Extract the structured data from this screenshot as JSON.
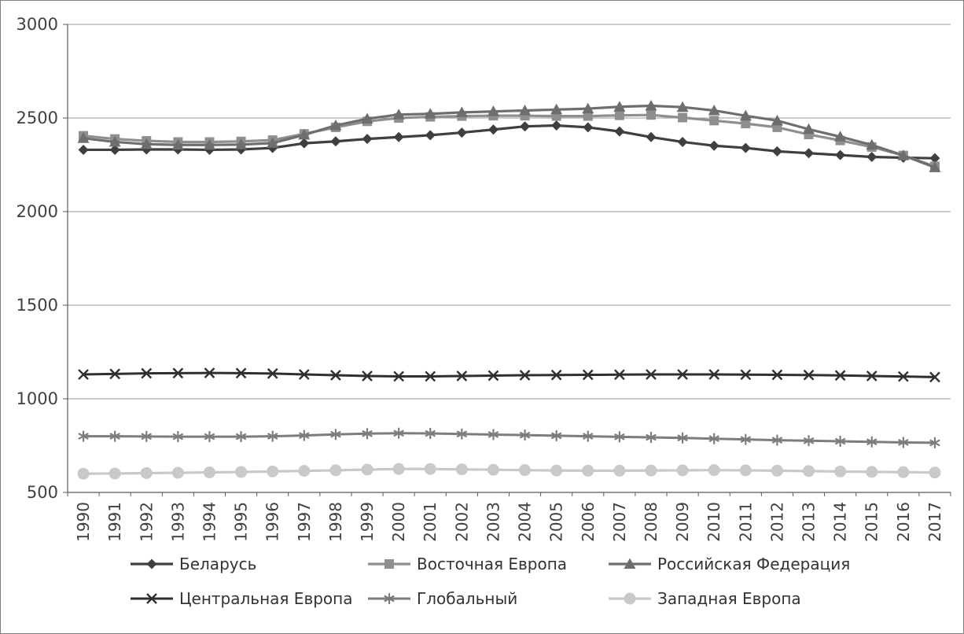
{
  "chart_data": {
    "type": "line",
    "title": "",
    "xlabel": "",
    "ylabel": "",
    "x": [
      1990,
      1991,
      1992,
      1993,
      1994,
      1995,
      1996,
      1997,
      1998,
      1999,
      2000,
      2001,
      2002,
      2003,
      2004,
      2005,
      2006,
      2007,
      2008,
      2009,
      2010,
      2011,
      2012,
      2013,
      2014,
      2015,
      2016,
      2017
    ],
    "ylim": [
      500,
      3000
    ],
    "yticks": [
      500,
      1000,
      1500,
      2000,
      2500,
      3000
    ],
    "grid": true,
    "legend_position": "bottom",
    "series": [
      {
        "name": "Беларусь",
        "marker": "diamond",
        "color": "#3f3f3f",
        "line_width": 3.2,
        "values": [
          2330,
          2330,
          2332,
          2332,
          2330,
          2332,
          2340,
          2365,
          2375,
          2388,
          2398,
          2408,
          2422,
          2438,
          2455,
          2460,
          2450,
          2428,
          2398,
          2372,
          2352,
          2340,
          2322,
          2312,
          2302,
          2292,
          2288,
          2285
        ]
      },
      {
        "name": "Восточная Европа",
        "marker": "square",
        "color": "#8f8f8f",
        "line_width": 3.2,
        "values": [
          2405,
          2388,
          2378,
          2372,
          2372,
          2375,
          2382,
          2415,
          2450,
          2482,
          2500,
          2506,
          2510,
          2512,
          2512,
          2510,
          2510,
          2514,
          2516,
          2502,
          2486,
          2470,
          2450,
          2412,
          2380,
          2345,
          2300,
          2242
        ]
      },
      {
        "name": "Российская Федерация",
        "marker": "triangle",
        "color": "#6e6e6e",
        "line_width": 3.2,
        "values": [
          2392,
          2372,
          2360,
          2356,
          2356,
          2358,
          2366,
          2410,
          2460,
          2496,
          2518,
          2522,
          2530,
          2535,
          2540,
          2545,
          2550,
          2560,
          2565,
          2558,
          2540,
          2512,
          2486,
          2440,
          2400,
          2356,
          2300,
          2236
        ]
      },
      {
        "name": "Центральная Европа",
        "marker": "x",
        "color": "#2f2f2f",
        "line_width": 3,
        "values": [
          1130,
          1133,
          1136,
          1137,
          1138,
          1137,
          1135,
          1130,
          1126,
          1122,
          1120,
          1120,
          1122,
          1124,
          1126,
          1127,
          1128,
          1129,
          1130,
          1130,
          1130,
          1129,
          1128,
          1127,
          1125,
          1122,
          1119,
          1116
        ]
      },
      {
        "name": "Глобальный",
        "marker": "star",
        "color": "#7d7d7d",
        "line_width": 3,
        "values": [
          800,
          800,
          799,
          798,
          798,
          798,
          800,
          804,
          810,
          814,
          816,
          815,
          812,
          809,
          806,
          803,
          800,
          797,
          794,
          791,
          787,
          783,
          779,
          776,
          773,
          770,
          767,
          765
        ]
      },
      {
        "name": "Западная Европа",
        "marker": "circle",
        "color": "#c9c9c9",
        "line_width": 3.2,
        "values": [
          600,
          601,
          603,
          605,
          607,
          609,
          612,
          615,
          618,
          622,
          625,
          625,
          623,
          621,
          619,
          617,
          616,
          616,
          617,
          618,
          619,
          618,
          616,
          614,
          612,
          610,
          608,
          606
        ]
      }
    ]
  },
  "colors": {
    "background": "#ffffff",
    "frame_border": "#7f7f7f",
    "gridline": "#9a9a9a",
    "axis_line": "#595959",
    "axis_text": "#404040"
  }
}
